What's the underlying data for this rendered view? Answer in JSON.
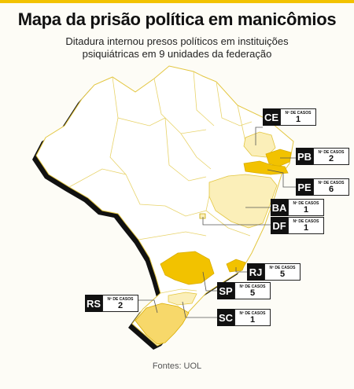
{
  "title": "Mapa da prisão política em manicômios",
  "subtitle": "Ditadura internou presos políticos em instituições psiquiátricas em 9 unidades da federação",
  "source": "Fontes: UOL",
  "case_label": "Nº DE CASOS",
  "colors": {
    "accent": "#f2c200",
    "state_fill_low": "#fbefb9",
    "state_fill_mid": "#f7d86a",
    "state_fill_high": "#f2c200",
    "border": "#e3c640",
    "shadow": "#111111"
  },
  "states": [
    {
      "uf": "CE",
      "cases": "1"
    },
    {
      "uf": "PB",
      "cases": "2"
    },
    {
      "uf": "PE",
      "cases": "6"
    },
    {
      "uf": "BA",
      "cases": "1"
    },
    {
      "uf": "DF",
      "cases": "1"
    },
    {
      "uf": "RJ",
      "cases": "5"
    },
    {
      "uf": "SP",
      "cases": "5"
    },
    {
      "uf": "RS",
      "cases": "2"
    },
    {
      "uf": "SC",
      "cases": "1"
    }
  ]
}
